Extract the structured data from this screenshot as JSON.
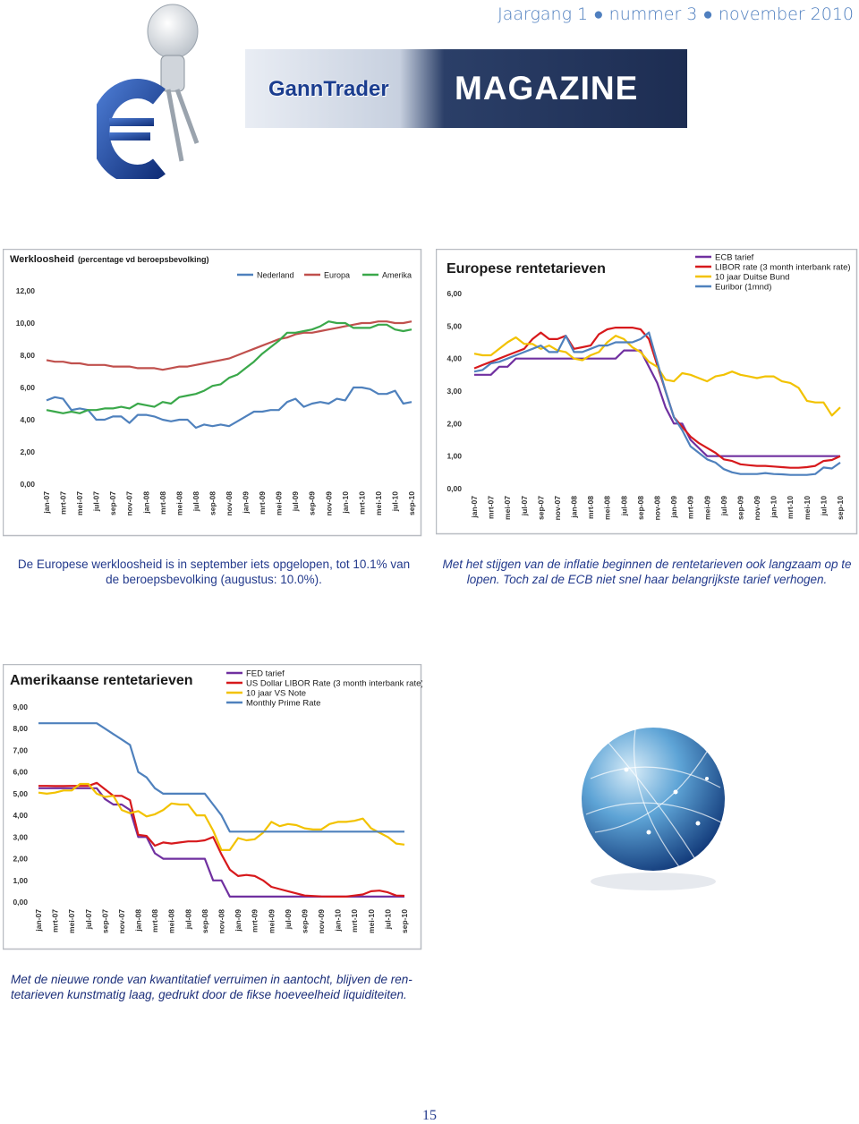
{
  "header": {
    "issue": "Jaargang 1 ● nummer 3 ● november 2010",
    "brand": "GannTrader",
    "magazine": "MAGAZINE"
  },
  "chart_data": [
    {
      "type": "line",
      "title": "Werkloosheid",
      "subtitle": "(percentage vd beroepsbevolking)",
      "categories": [
        "jan-07",
        null,
        "mrt-07",
        null,
        "mei-07",
        null,
        "jul-07",
        null,
        "sep-07",
        null,
        "nov-07",
        null,
        "jan-08",
        null,
        "mrt-08",
        null,
        "mei-08",
        null,
        "jul-08",
        null,
        "sep-08",
        null,
        "nov-08",
        null,
        "jan-09",
        null,
        "mrt-09",
        null,
        "mei-09",
        null,
        "jul-09",
        null,
        "sep-09",
        null,
        "nov-09",
        null,
        "jan-10",
        null,
        "mrt-10",
        null,
        "mei-10",
        null,
        "jul-10",
        null,
        "sep-10"
      ],
      "series": [
        {
          "name": "Nederland",
          "color": "#4f81bd",
          "values": [
            5.2,
            5.4,
            5.3,
            4.6,
            4.7,
            4.6,
            4.0,
            4.0,
            4.2,
            4.2,
            3.8,
            4.3,
            4.3,
            4.2,
            4.0,
            3.9,
            4.0,
            4.0,
            3.5,
            3.7,
            3.6,
            3.7,
            3.6,
            3.9,
            4.2,
            4.5,
            4.5,
            4.6,
            4.6,
            5.1,
            5.3,
            4.8,
            5.0,
            5.1,
            5.0,
            5.3,
            5.2,
            6.0,
            6.0,
            5.9,
            5.6,
            5.6,
            5.8,
            5.0,
            5.1
          ]
        },
        {
          "name": "Europa",
          "color": "#c0504d",
          "values": [
            7.7,
            7.6,
            7.6,
            7.5,
            7.5,
            7.4,
            7.4,
            7.4,
            7.3,
            7.3,
            7.3,
            7.2,
            7.2,
            7.2,
            7.1,
            7.2,
            7.3,
            7.3,
            7.4,
            7.5,
            7.6,
            7.7,
            7.8,
            8.0,
            8.2,
            8.4,
            8.6,
            8.8,
            9.0,
            9.1,
            9.3,
            9.4,
            9.4,
            9.5,
            9.6,
            9.7,
            9.8,
            9.9,
            10.0,
            10.0,
            10.1,
            10.1,
            10.0,
            10.0,
            10.1
          ]
        },
        {
          "name": "Amerika",
          "color": "#3aa84a",
          "values": [
            4.6,
            4.5,
            4.4,
            4.5,
            4.4,
            4.6,
            4.6,
            4.7,
            4.7,
            4.8,
            4.7,
            5.0,
            4.9,
            4.8,
            5.1,
            5.0,
            5.4,
            5.5,
            5.6,
            5.8,
            6.1,
            6.2,
            6.6,
            6.8,
            7.2,
            7.6,
            8.1,
            8.5,
            8.9,
            9.4,
            9.4,
            9.5,
            9.6,
            9.8,
            10.1,
            10.0,
            10.0,
            9.7,
            9.7,
            9.7,
            9.9,
            9.9,
            9.6,
            9.5,
            9.6
          ]
        }
      ],
      "ylim": [
        0,
        12
      ],
      "yticks": [
        {
          "value": 0,
          "label": "0,00"
        },
        {
          "value": 2,
          "label": "2,00"
        },
        {
          "value": 4,
          "label": "4,00"
        },
        {
          "value": 6,
          "label": "6,00"
        },
        {
          "value": 8,
          "label": "8,00"
        },
        {
          "value": 10,
          "label": "10,00"
        },
        {
          "value": 12,
          "label": "12,00"
        }
      ],
      "grid": false
    },
    {
      "type": "line",
      "title": "Europese rentetarieven",
      "categories": [
        "jan-07",
        null,
        "mrt-07",
        null,
        "mei-07",
        null,
        "jul-07",
        null,
        "sep-07",
        null,
        "nov-07",
        null,
        "jan-08",
        null,
        "mrt-08",
        null,
        "mei-08",
        null,
        "jul-08",
        null,
        "sep-08",
        null,
        "nov-08",
        null,
        "jan-09",
        null,
        "mrt-09",
        null,
        "mei-09",
        null,
        "jul-09",
        null,
        "sep-09",
        null,
        "nov-09",
        null,
        "jan-10",
        null,
        "mrt-10",
        null,
        "mei-10",
        null,
        "jul-10",
        null,
        "sep-10"
      ],
      "series": [
        {
          "name": "ECB tarief",
          "color": "#7030a0",
          "values": [
            3.5,
            3.5,
            3.5,
            3.75,
            3.75,
            4.0,
            4.0,
            4.0,
            4.0,
            4.0,
            4.0,
            4.0,
            4.0,
            4.0,
            4.0,
            4.0,
            4.0,
            4.0,
            4.25,
            4.25,
            4.25,
            3.75,
            3.25,
            2.5,
            2.0,
            2.0,
            1.5,
            1.25,
            1.0,
            1.0,
            1.0,
            1.0,
            1.0,
            1.0,
            1.0,
            1.0,
            1.0,
            1.0,
            1.0,
            1.0,
            1.0,
            1.0,
            1.0,
            1.0,
            1.0
          ]
        },
        {
          "name": "LIBOR rate (3 month interbank rate)",
          "color": "#d7191c",
          "values": [
            3.7,
            3.8,
            3.9,
            4.0,
            4.1,
            4.2,
            4.3,
            4.6,
            4.8,
            4.6,
            4.6,
            4.7,
            4.3,
            4.35,
            4.4,
            4.75,
            4.9,
            4.95,
            4.95,
            4.95,
            4.9,
            4.6,
            3.8,
            3.0,
            2.2,
            1.9,
            1.6,
            1.4,
            1.25,
            1.1,
            0.9,
            0.85,
            0.75,
            0.72,
            0.7,
            0.7,
            0.68,
            0.66,
            0.64,
            0.64,
            0.66,
            0.7,
            0.85,
            0.88,
            1.0
          ]
        },
        {
          "name": "10 jaar Duitse Bund",
          "color": "#f2c200",
          "values": [
            4.15,
            4.1,
            4.1,
            4.3,
            4.5,
            4.65,
            4.45,
            4.45,
            4.3,
            4.4,
            4.25,
            4.2,
            4.0,
            3.95,
            4.1,
            4.2,
            4.5,
            4.7,
            4.6,
            4.35,
            4.2,
            3.9,
            3.75,
            3.35,
            3.3,
            3.55,
            3.5,
            3.4,
            3.3,
            3.45,
            3.5,
            3.6,
            3.5,
            3.45,
            3.4,
            3.45,
            3.45,
            3.3,
            3.25,
            3.1,
            2.7,
            2.65,
            2.65,
            2.25,
            2.5
          ]
        },
        {
          "name": "Euribor (1mnd)",
          "color": "#4f81bd",
          "values": [
            3.6,
            3.65,
            3.85,
            3.9,
            4.0,
            4.1,
            4.2,
            4.3,
            4.4,
            4.2,
            4.2,
            4.7,
            4.2,
            4.2,
            4.3,
            4.4,
            4.4,
            4.5,
            4.5,
            4.5,
            4.6,
            4.8,
            3.9,
            3.0,
            2.2,
            1.8,
            1.3,
            1.1,
            0.9,
            0.8,
            0.6,
            0.5,
            0.45,
            0.45,
            0.45,
            0.48,
            0.45,
            0.44,
            0.42,
            0.42,
            0.42,
            0.45,
            0.65,
            0.62,
            0.8
          ]
        }
      ],
      "ylim": [
        0,
        6
      ],
      "yticks": [
        {
          "value": 0,
          "label": "0,00"
        },
        {
          "value": 1,
          "label": "1,00"
        },
        {
          "value": 2,
          "label": "2,00"
        },
        {
          "value": 3,
          "label": "3,00"
        },
        {
          "value": 4,
          "label": "4,00"
        },
        {
          "value": 5,
          "label": "5,00"
        },
        {
          "value": 6,
          "label": "6,00"
        }
      ],
      "grid": false
    },
    {
      "type": "line",
      "title": "Amerikaanse rentetarieven",
      "categories": [
        "jan-07",
        null,
        "mrt-07",
        null,
        "mei-07",
        null,
        "jul-07",
        null,
        "sep-07",
        null,
        "nov-07",
        null,
        "jan-08",
        null,
        "mrt-08",
        null,
        "mei-08",
        null,
        "jul-08",
        null,
        "sep-08",
        null,
        "nov-08",
        null,
        "jan-09",
        null,
        "mrt-09",
        null,
        "mei-09",
        null,
        "jul-09",
        null,
        "sep-09",
        null,
        "nov-09",
        null,
        "jan-10",
        null,
        "mrt-10",
        null,
        "mei-10",
        null,
        "jul-10",
        null,
        "sep-10"
      ],
      "series": [
        {
          "name": "FED tarief",
          "color": "#7030a0",
          "values": [
            5.25,
            5.25,
            5.25,
            5.25,
            5.25,
            5.25,
            5.25,
            5.25,
            4.75,
            4.5,
            4.5,
            4.25,
            3.0,
            3.0,
            2.25,
            2.0,
            2.0,
            2.0,
            2.0,
            2.0,
            2.0,
            1.0,
            1.0,
            0.25,
            0.25,
            0.25,
            0.25,
            0.25,
            0.25,
            0.25,
            0.25,
            0.25,
            0.25,
            0.25,
            0.25,
            0.25,
            0.25,
            0.25,
            0.25,
            0.25,
            0.25,
            0.25,
            0.25,
            0.25,
            0.25
          ]
        },
        {
          "name": "US Dollar LIBOR Rate (3 month interbank rate)",
          "color": "#d7191c",
          "values": [
            5.36,
            5.36,
            5.35,
            5.35,
            5.36,
            5.36,
            5.36,
            5.5,
            5.2,
            4.9,
            4.9,
            4.7,
            3.1,
            3.05,
            2.6,
            2.75,
            2.7,
            2.75,
            2.8,
            2.8,
            2.85,
            3.0,
            2.2,
            1.5,
            1.2,
            1.25,
            1.2,
            1.0,
            0.7,
            0.6,
            0.5,
            0.4,
            0.3,
            0.28,
            0.26,
            0.25,
            0.25,
            0.25,
            0.3,
            0.35,
            0.5,
            0.53,
            0.45,
            0.3,
            0.29
          ]
        },
        {
          "name": "10 jaar VS Note",
          "color": "#f2c200",
          "values": [
            5.05,
            5.0,
            5.05,
            5.15,
            5.15,
            5.45,
            5.45,
            5.0,
            4.85,
            4.9,
            4.25,
            4.1,
            4.2,
            3.95,
            4.05,
            4.25,
            4.55,
            4.5,
            4.5,
            4.0,
            4.0,
            3.3,
            2.4,
            2.4,
            2.95,
            2.85,
            2.9,
            3.2,
            3.7,
            3.5,
            3.6,
            3.55,
            3.4,
            3.35,
            3.35,
            3.6,
            3.7,
            3.7,
            3.75,
            3.85,
            3.4,
            3.2,
            3.0,
            2.7,
            2.65
          ]
        },
        {
          "name": "Monthly Prime Rate",
          "color": "#4f81bd",
          "values": [
            8.25,
            8.25,
            8.25,
            8.25,
            8.25,
            8.25,
            8.25,
            8.25,
            8.0,
            7.75,
            7.5,
            7.25,
            6.0,
            5.75,
            5.25,
            5.0,
            5.0,
            5.0,
            5.0,
            5.0,
            5.0,
            4.5,
            4.0,
            3.25,
            3.25,
            3.25,
            3.25,
            3.25,
            3.25,
            3.25,
            3.25,
            3.25,
            3.25,
            3.25,
            3.25,
            3.25,
            3.25,
            3.25,
            3.25,
            3.25,
            3.25,
            3.25,
            3.25,
            3.25,
            3.25
          ]
        }
      ],
      "ylim": [
        0,
        9
      ],
      "yticks": [
        {
          "value": 0,
          "label": "0,00"
        },
        {
          "value": 1,
          "label": "1,00"
        },
        {
          "value": 2,
          "label": "2,00"
        },
        {
          "value": 3,
          "label": "3,00"
        },
        {
          "value": 4,
          "label": "4,00"
        },
        {
          "value": 5,
          "label": "5,00"
        },
        {
          "value": 6,
          "label": "6,00"
        },
        {
          "value": 7,
          "label": "7,00"
        },
        {
          "value": 8,
          "label": "8,00"
        },
        {
          "value": 9,
          "label": "9,00"
        }
      ],
      "grid": false
    }
  ],
  "captions": [
    "De Europese werkloosheid is in september iets opgelopen, tot 10.1% van de beroepsbevolking (augustus: 10.0%).",
    "Met het stijgen van de inflatie beginnen de rentetarieven ook langzaam op te lopen. Toch zal de ECB niet snel haar belangrijkste tarief verhogen.",
    "Met de nieuwe ronde van kwantitatief verruimen in aantocht, blijven de ren-tetarieven kunstmatig laag, gedrukt door de fikse hoeveelheid liquiditeiten."
  ],
  "page_number": "15"
}
